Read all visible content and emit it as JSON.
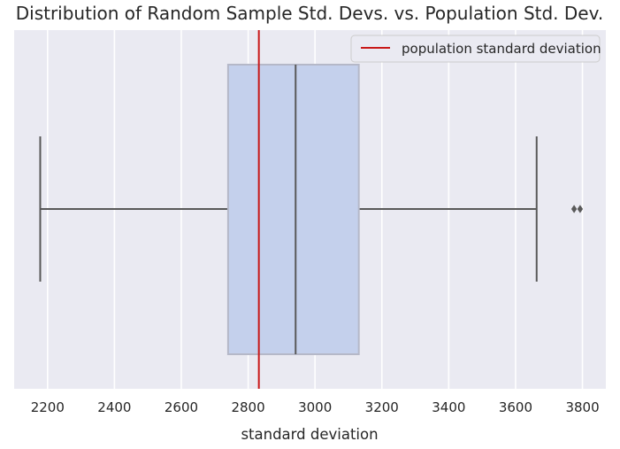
{
  "chart_data": {
    "type": "box",
    "title": "Distribution of Random Sample Std. Devs. vs. Population Std. Dev.",
    "xlabel": "standard deviation",
    "ylabel": "",
    "xlim": [
      2100,
      3870
    ],
    "xticks": [
      2200,
      2400,
      2600,
      2800,
      3000,
      3200,
      3400,
      3600,
      3800
    ],
    "xtick_labels": [
      "2200",
      "2400",
      "2600",
      "2800",
      "3000",
      "3200",
      "3400",
      "3600",
      "3800"
    ],
    "grid": true,
    "legend_position": "top-right",
    "box": {
      "whisker_low": 2178,
      "q1": 2740,
      "median": 2942,
      "q3": 3131,
      "whisker_high": 3663,
      "outliers": [
        3775,
        3793
      ]
    },
    "reference_line": {
      "name": "population standard deviation",
      "value": 2832
    },
    "colors": {
      "background": "#eaeaf2",
      "grid": "#ffffff",
      "box_fill": "#c4d0ec",
      "box_edge": "#b5b8c8",
      "whisker": "#595959",
      "reference_line": "#c81818",
      "text": "#262626"
    }
  }
}
